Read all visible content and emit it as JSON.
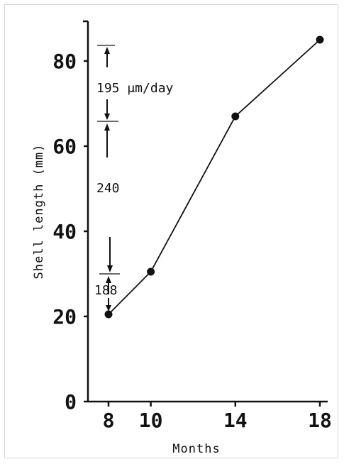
{
  "chart_data": {
    "type": "line",
    "xlabel": "Months",
    "ylabel": "Shell length (mm)",
    "x": [
      8,
      10,
      14,
      18
    ],
    "y": [
      20.5,
      30.5,
      67,
      85
    ],
    "xticks": [
      8,
      10,
      14,
      18
    ],
    "yticks": [
      0,
      20,
      40,
      60,
      80
    ],
    "xlim": [
      7.2,
      18.5
    ],
    "ylim": [
      0,
      90
    ],
    "grid": false,
    "legend": "none",
    "annotations": [
      {
        "text": "195 μm/day",
        "between_y": [
          66,
          84
        ]
      },
      {
        "text": "240",
        "between_y": [
          30,
          66
        ]
      },
      {
        "text": "188",
        "between_y": [
          20.5,
          30
        ]
      }
    ]
  }
}
